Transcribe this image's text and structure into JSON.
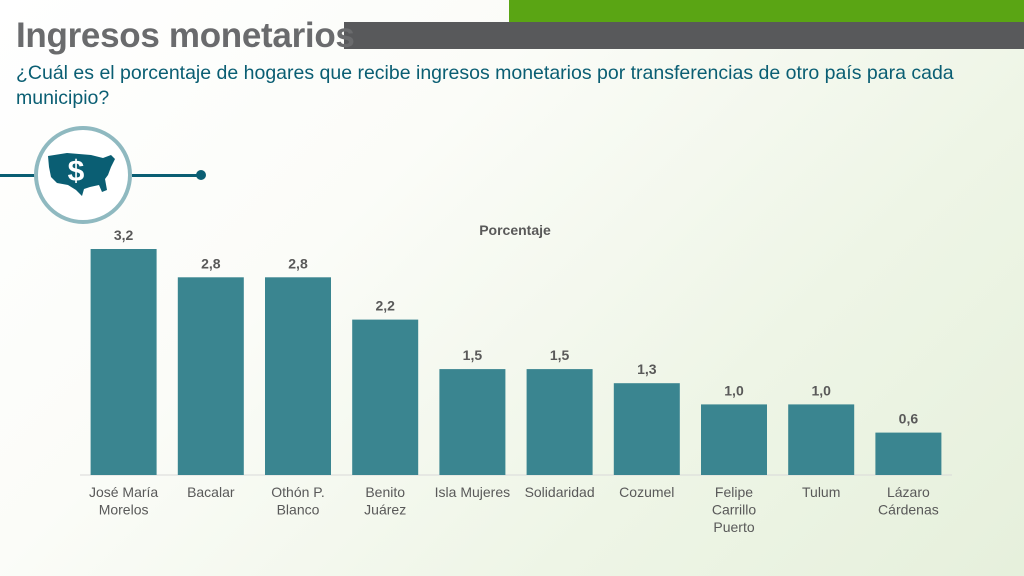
{
  "header": {
    "title": "Ingresos monetarios",
    "subtitle": "¿Cuál es el porcentaje de hogares que recibe ingresos monetarios por transferencias de otro país para cada municipio?"
  },
  "icons": {
    "emblem": "us-map-dollar-icon"
  },
  "colors": {
    "bar": "#3a8590",
    "accent_green": "#5aa514",
    "accent_gray": "#58595b",
    "subtitle": "#0a5e73"
  },
  "chart_data": {
    "type": "bar",
    "title": "Porcentaje",
    "xlabel": "",
    "ylabel": "",
    "ylim": [
      0,
      3.2
    ],
    "categories": [
      [
        "José María",
        "Morelos"
      ],
      [
        "Bacalar"
      ],
      [
        "Othón P.",
        "Blanco"
      ],
      [
        "Benito",
        "Juárez"
      ],
      [
        "Isla Mujeres"
      ],
      [
        "Solidaridad"
      ],
      [
        "Cozumel"
      ],
      [
        "Felipe",
        "Carrillo",
        "Puerto"
      ],
      [
        "Tulum"
      ],
      [
        "Lázaro",
        "Cárdenas"
      ]
    ],
    "values": [
      3.2,
      2.8,
      2.8,
      2.2,
      1.5,
      1.5,
      1.3,
      1.0,
      1.0,
      0.6
    ],
    "value_labels": [
      "3,2",
      "2,8",
      "2,8",
      "2,2",
      "1,5",
      "1,5",
      "1,3",
      "1,0",
      "1,0",
      "0,6"
    ],
    "grid": false,
    "legend": "none"
  }
}
